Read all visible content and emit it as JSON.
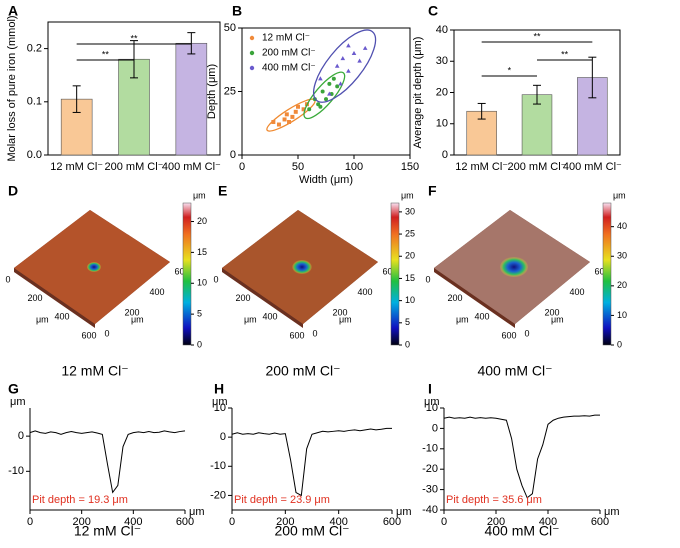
{
  "chart_data": [
    {
      "type": "bar",
      "panel": "A",
      "ylabel": "Molar loss of pure iron (mmol)",
      "categories": [
        "12 mM Cl⁻",
        "200 mM Cl⁻",
        "400 mM Cl⁻"
      ],
      "values": [
        0.105,
        0.18,
        0.21
      ],
      "errors": [
        0.025,
        0.035,
        0.02
      ],
      "colors": [
        "#f9c896",
        "#b2dca0",
        "#c5b4e2"
      ],
      "ylim": [
        0,
        0.25
      ],
      "yticks": [
        {
          "value": 0,
          "label": "0.0"
        },
        0.1,
        0.2
      ],
      "annotations": [
        "**",
        "**"
      ]
    },
    {
      "type": "scatter",
      "panel": "B",
      "xlabel": "Width (μm)",
      "ylabel": "Depth (μm)",
      "xlim": [
        0,
        150
      ],
      "xticks": [
        0,
        50,
        100,
        150
      ],
      "ylim": [
        0,
        50
      ],
      "yticks": [
        0,
        25,
        50
      ],
      "legend": "top-left",
      "series": [
        {
          "name": "12 mM Cl⁻",
          "color": "#f08a3a",
          "ellipse_color": "#f08a30",
          "x": [
            28,
            33,
            38,
            40,
            45,
            48,
            50,
            55,
            42,
            58
          ],
          "values": [
            13,
            12,
            14,
            16,
            15,
            17,
            19,
            18,
            13,
            20
          ]
        },
        {
          "name": "200 mM Cl⁻",
          "color": "#3aa43a",
          "ellipse_color": "#3aaa3a",
          "x": [
            60,
            65,
            68,
            72,
            75,
            78,
            80,
            82,
            85,
            70
          ],
          "values": [
            18,
            22,
            20,
            25,
            22,
            28,
            24,
            30,
            27,
            19
          ]
        },
        {
          "name": "400 mM Cl⁻",
          "color": "#6a5acd",
          "ellipse_color": "#5050b0",
          "x": [
            70,
            78,
            85,
            90,
            95,
            100,
            105,
            88,
            110,
            95
          ],
          "values": [
            30,
            24,
            35,
            38,
            33,
            40,
            37,
            28,
            42,
            43
          ]
        }
      ]
    },
    {
      "type": "bar",
      "panel": "C",
      "ylabel": "Average pit depth (μm)",
      "categories": [
        "12 mM Cl⁻",
        "200 mM Cl⁻",
        "400 mM Cl⁻"
      ],
      "values": [
        14,
        19.3,
        24.8
      ],
      "errors": [
        2.5,
        3,
        6.5
      ],
      "colors": [
        "#f9c896",
        "#b2dca0",
        "#c5b4e2"
      ],
      "ylim": [
        0,
        40
      ],
      "yticks": [
        0,
        10,
        20,
        30,
        40
      ],
      "annotations": [
        "**",
        "**",
        "*"
      ]
    },
    {
      "type": "surface",
      "panel": "D",
      "caption": "12 mM Cl⁻",
      "unit": "μm",
      "color": "#b4532a",
      "ticks": [
        0,
        200,
        400,
        600
      ],
      "clim": [
        0,
        23
      ],
      "cticks": [
        0,
        5,
        10,
        15,
        20
      ]
    },
    {
      "type": "surface",
      "panel": "E",
      "caption": "200 mM Cl⁻",
      "unit": "μm",
      "color": "#a9552c",
      "ticks": [
        0,
        200,
        400,
        600
      ],
      "clim": [
        0,
        32
      ],
      "cticks": [
        0,
        5,
        10,
        15,
        20,
        25,
        30
      ]
    },
    {
      "type": "surface",
      "panel": "F",
      "caption": "400 mM Cl⁻",
      "unit": "μm",
      "color": "#a6766a",
      "ticks": [
        0,
        200,
        400,
        600
      ],
      "clim": [
        0,
        48
      ],
      "cticks": [
        0,
        10,
        20,
        30,
        40
      ]
    },
    {
      "type": "line",
      "panel": "G",
      "caption": "12 mM Cl⁻",
      "xlabel": "μm",
      "ylabel": "μm",
      "annotation": "Pit depth = 19.3 μm",
      "xlim": [
        0,
        600
      ],
      "xticks": [
        0,
        200,
        400,
        600
      ],
      "ylim": [
        -21,
        8
      ],
      "yticks": [
        -10,
        0
      ],
      "x": [
        0,
        20,
        40,
        60,
        80,
        100,
        120,
        140,
        160,
        180,
        200,
        220,
        240,
        260,
        280,
        300,
        320,
        340,
        360,
        380,
        400,
        420,
        440,
        460,
        480,
        500,
        520,
        540,
        560,
        580,
        600
      ],
      "values": [
        1,
        1.5,
        1,
        0.8,
        1.2,
        1,
        0.5,
        1,
        1.3,
        1,
        0.8,
        1,
        1.2,
        0.9,
        0.5,
        -8,
        -16,
        -14,
        -3,
        0.5,
        1,
        1.2,
        1,
        1.3,
        1,
        1.1,
        1.5,
        1.2,
        1,
        1.3,
        1.5
      ]
    },
    {
      "type": "line",
      "panel": "H",
      "caption": "200 mM Cl⁻",
      "xlabel": "μm",
      "ylabel": "μm",
      "annotation": "Pit depth = 23.9 μm",
      "xlim": [
        0,
        600
      ],
      "xticks": [
        0,
        200,
        400,
        600
      ],
      "ylim": [
        -25,
        10
      ],
      "yticks": [
        -20,
        -10,
        0,
        10
      ],
      "x": [
        0,
        20,
        40,
        60,
        80,
        100,
        120,
        140,
        160,
        180,
        200,
        220,
        240,
        260,
        280,
        300,
        320,
        340,
        360,
        380,
        400,
        420,
        440,
        460,
        480,
        500,
        520,
        540,
        560,
        580,
        600
      ],
      "values": [
        1,
        1.5,
        1,
        1.2,
        1,
        1.5,
        1.2,
        1,
        1.4,
        1,
        1.2,
        -8,
        -19,
        -20,
        -4,
        1,
        1.5,
        2,
        1.8,
        2,
        2.2,
        2,
        2.3,
        2.5,
        2.2,
        2.5,
        2.8,
        2.5,
        2.7,
        3,
        3
      ]
    },
    {
      "type": "line",
      "panel": "I",
      "caption": "400 mM Cl⁻",
      "xlabel": "μm",
      "ylabel": "μm",
      "annotation": "Pit depth = 35.6 μm",
      "xlim": [
        0,
        600
      ],
      "xticks": [
        0,
        200,
        400,
        600
      ],
      "ylim": [
        -40,
        10
      ],
      "yticks": [
        -40,
        -30,
        -20,
        -10,
        0,
        10
      ],
      "x": [
        0,
        20,
        40,
        60,
        80,
        100,
        120,
        140,
        160,
        180,
        200,
        220,
        240,
        260,
        280,
        300,
        320,
        340,
        360,
        380,
        400,
        420,
        440,
        460,
        480,
        500,
        520,
        540,
        560,
        580,
        600
      ],
      "values": [
        5,
        5.5,
        5,
        5.2,
        5,
        5.5,
        5,
        5.3,
        5,
        5.2,
        5,
        4.5,
        4,
        -5,
        -20,
        -28,
        -34,
        -32,
        -15,
        -8,
        2,
        4,
        5,
        5.5,
        5.8,
        6,
        6,
        6.2,
        6,
        6.5,
        6.5
      ]
    }
  ]
}
